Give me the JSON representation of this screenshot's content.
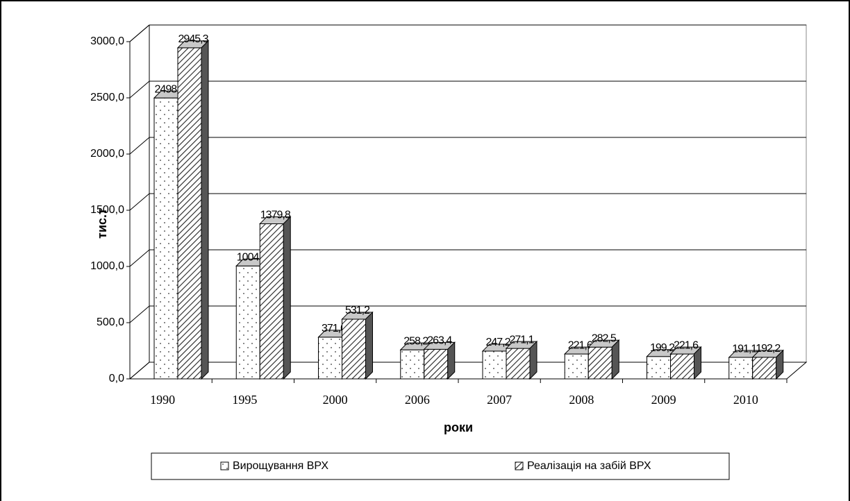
{
  "chart_data": {
    "type": "bar3d",
    "x_label": "роки",
    "y_label": "тис.т",
    "categories": [
      "1990",
      "1995",
      "2000",
      "2006",
      "2007",
      "2008",
      "2009",
      "2010"
    ],
    "series": [
      {
        "name": "Вирощування ВРХ",
        "values": [
          2498.9,
          1004.4,
          371.0,
          258.2,
          247.2,
          221.6,
          199.2,
          191.1
        ],
        "value_labels": [
          "2498,9",
          "1004,4",
          "371,0",
          "258,2",
          "247,2",
          "221,6",
          "199,2",
          "191,1"
        ]
      },
      {
        "name": "Реалізація на забій ВРХ",
        "values": [
          2945.3,
          1379.8,
          531.2,
          263.4,
          271.1,
          282.5,
          221.6,
          192.2
        ],
        "value_labels": [
          "2945,3",
          "1379,8",
          "531,2",
          "263,4",
          "271,1",
          "282,5",
          "221,6",
          "192,2"
        ]
      }
    ],
    "ylim": [
      0,
      3000
    ],
    "yticks": [
      {
        "value": 0,
        "label": "0,0"
      },
      {
        "value": 500,
        "label": "500,0"
      },
      {
        "value": 1000,
        "label": "1000,0"
      },
      {
        "value": 1500,
        "label": "1500,0"
      },
      {
        "value": 2000,
        "label": "2000,0"
      },
      {
        "value": 2500,
        "label": "2500,0"
      },
      {
        "value": 3000,
        "label": "3000,0"
      }
    ],
    "grid": true,
    "legend": "bottom"
  }
}
